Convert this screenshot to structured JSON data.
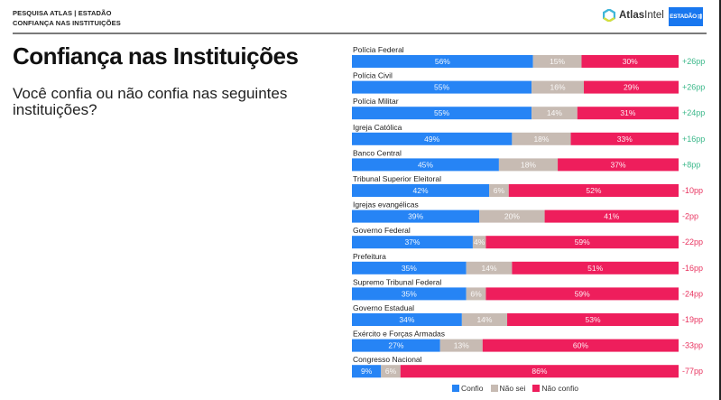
{
  "header": {
    "kicker_line1": "PESQUISA ATLAS | ESTADÃO",
    "kicker_line2": "CONFIANÇA NAS INSTITUIÇÕES",
    "logo_atlas_bold": "Atlas",
    "logo_atlas_regular": "Intel",
    "logo_estadao": "ESTADÃO",
    "logo_estadao_icon": "⇶"
  },
  "main": {
    "title": "Confiança nas Instituições",
    "subtitle": "Você confia ou não confia nas seguintes instituições?"
  },
  "colors": {
    "confio": "#2684f5",
    "nao_sei": "#c7bbb3",
    "nao_confio": "#ee1e5c",
    "positive": "#3bb88a",
    "negative": "#e8335f"
  },
  "chart_data": {
    "type": "bar",
    "orientation": "horizontal-stacked-100",
    "title": "Confiança nas Instituições",
    "series_names": [
      "Confio",
      "Não sei",
      "Não confio"
    ],
    "categories": [
      "Polícia Federal",
      "Polícia Civil",
      "Polícia Militar",
      "Igreja Católica",
      "Banco Central",
      "Tribunal Superior Eleitoral",
      "Igrejas evangélicas",
      "Governo Federal",
      "Prefeitura",
      "Supremo Tribunal Federal",
      "Governo Estadual",
      "Exército e Forças Armadas",
      "Congresso Nacional"
    ],
    "series": [
      {
        "name": "Confio",
        "values": [
          56,
          55,
          55,
          49,
          45,
          42,
          39,
          37,
          35,
          35,
          34,
          27,
          9
        ]
      },
      {
        "name": "Não sei",
        "values": [
          15,
          16,
          14,
          18,
          18,
          6,
          20,
          4,
          14,
          6,
          14,
          13,
          6
        ]
      },
      {
        "name": "Não confio",
        "values": [
          30,
          29,
          31,
          33,
          37,
          52,
          41,
          59,
          51,
          59,
          53,
          60,
          86
        ]
      }
    ],
    "net_labels": [
      "+26pp",
      "+26pp",
      "+24pp",
      "+16pp",
      "+8pp",
      "-10pp",
      "-2pp",
      "-22pp",
      "-16pp",
      "-24pp",
      "-19pp",
      "-33pp",
      "-77pp"
    ],
    "value_suffix": "%",
    "legend_position": "bottom-center"
  }
}
